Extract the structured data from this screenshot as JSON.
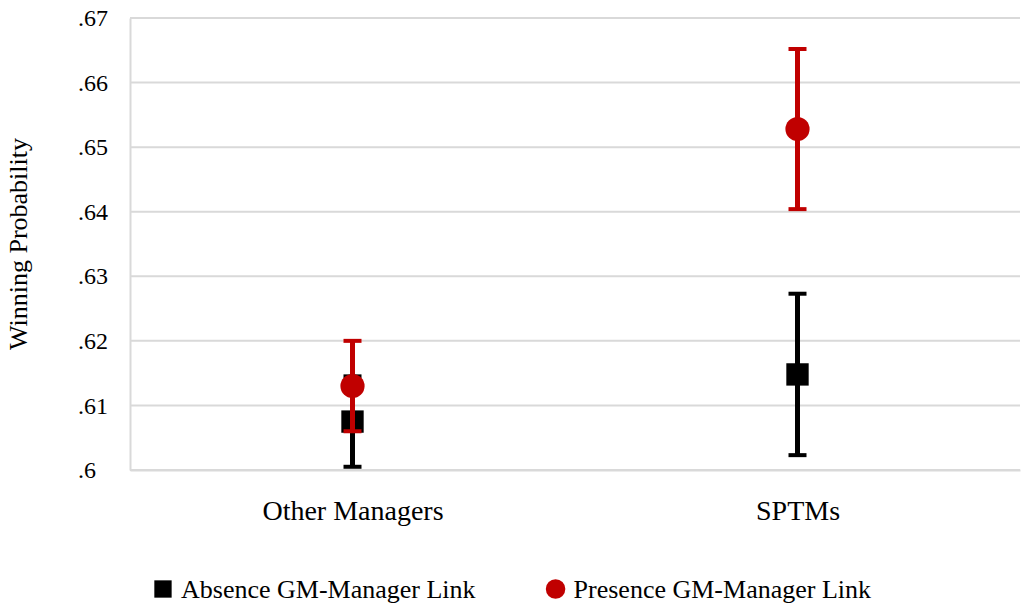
{
  "chart_data": {
    "type": "point",
    "y_label": "Winning Probability",
    "categories": [
      "Other Managers",
      "SPTMs"
    ],
    "series": [
      {
        "name": "Absence GM-Manager Link",
        "color": "#000000",
        "marker": "square",
        "values": [
          0.6075,
          0.6148
        ],
        "errors": [
          0.007,
          0.0125
        ]
      },
      {
        "name": "Presence GM-Manager Link",
        "color": "#c00000",
        "marker": "circle",
        "values": [
          0.613,
          0.6528
        ],
        "errors": [
          0.007,
          0.0124
        ]
      }
    ],
    "ylim": [
      0.6,
      0.67
    ],
    "yticks": [
      {
        "value": 0.6,
        "label": ".6"
      },
      {
        "value": 0.61,
        "label": ".61"
      },
      {
        "value": 0.62,
        "label": ".62"
      },
      {
        "value": 0.63,
        "label": ".63"
      },
      {
        "value": 0.64,
        "label": ".64"
      },
      {
        "value": 0.65,
        "label": ".65"
      },
      {
        "value": 0.66,
        "label": ".66"
      },
      {
        "value": 0.67,
        "label": ".67"
      }
    ],
    "grid": true,
    "legend": "bottom"
  }
}
